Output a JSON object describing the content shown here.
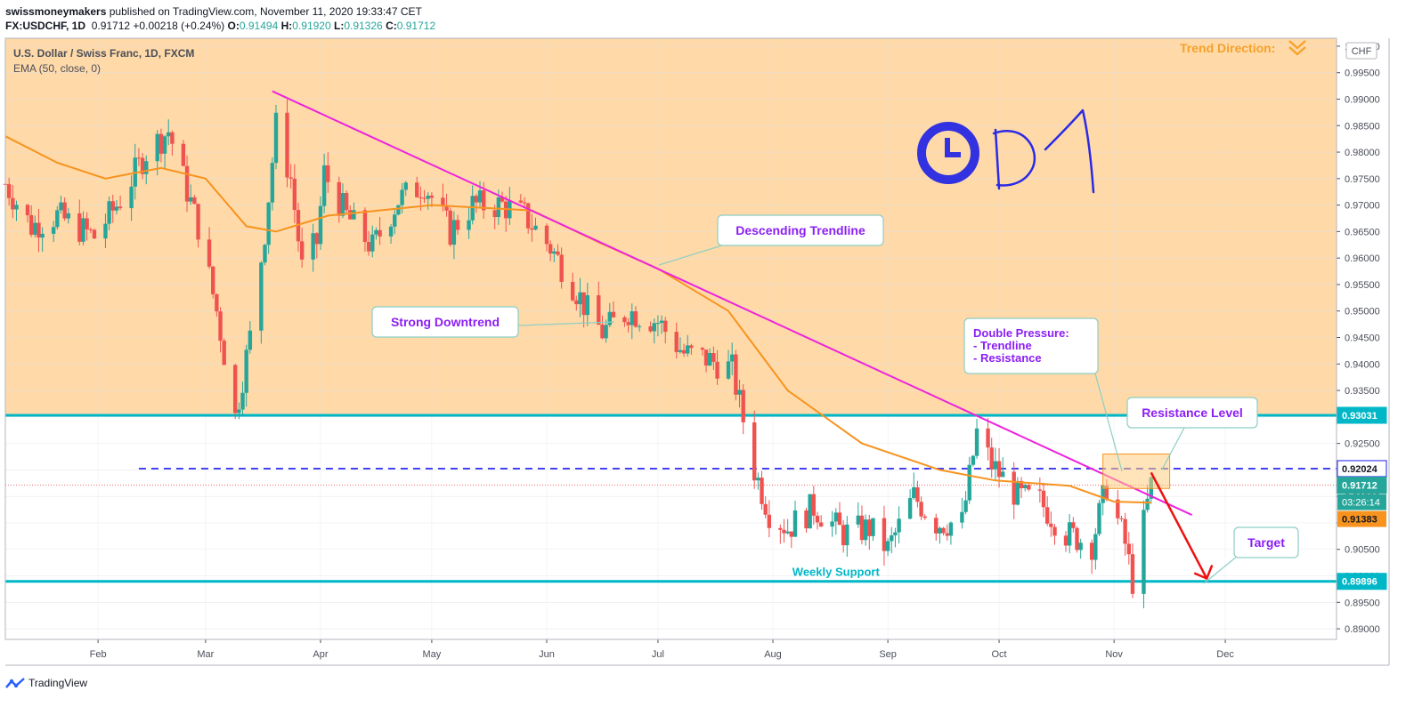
{
  "header": {
    "publisher": "swissmoneymakers",
    "published_text": "published on TradingView.com, November 11, 2020 19:33:47 CET",
    "symbol_line": "FX:USDCHF, 1D",
    "last": "0.91712",
    "change": "+0.00218 (+0.24%)",
    "open_label": "O:",
    "open": "0.91494",
    "high_label": "H:",
    "high": "0.91920",
    "low_label": "L:",
    "low": "0.91326",
    "close_label": "C:",
    "close": "0.91712"
  },
  "legend": {
    "title": "U.S. Dollar / Swiss Franc, 1D, FXCM",
    "indicator": "EMA (50, close, 0)"
  },
  "currency_badge": "CHF",
  "footer": {
    "brand": "TradingView"
  },
  "annotations": {
    "trend_direction": "Trend Direction:",
    "descending_trendline": "Descending Trendline",
    "strong_downtrend": "Strong Downtrend",
    "double_pressure": [
      "Double Pressure:",
      "- Trendline",
      "- Resistance"
    ],
    "resistance_level": "Resistance Level",
    "target": "Target",
    "weekly_support": "Weekly Support",
    "timeframe_handwritten": "D1"
  },
  "price_tags": {
    "resistance": "0.93031",
    "dashed_level": "0.92024",
    "last_price": "0.91712",
    "countdown": "03:26:14",
    "ema_value": "0.91383",
    "support": "0.89896"
  },
  "colors": {
    "up": "#26a69a",
    "down": "#ef5350",
    "ema": "#f7931e",
    "trendline": "#ee22dd",
    "zone": "#ffd9a8",
    "level_line": "#00b7c7",
    "dashed_level": "#1c1cf0",
    "arrow": "#ee1111",
    "annotation_text": "#8b1ef5",
    "trend_text": "#f7a128",
    "clock": "#3232e0"
  },
  "chart_data": {
    "type": "candlestick",
    "symbol": "FX:USDCHF",
    "interval": "1D",
    "x_tick_labels": [
      "Feb",
      "Mar",
      "Apr",
      "May",
      "Jun",
      "Jul",
      "Aug",
      "Sep",
      "Oct",
      "Nov",
      "Dec"
    ],
    "y_tick_labels": [
      "0.89000",
      "0.89500",
      "0.90000",
      "0.90500",
      "0.91000",
      "0.91500",
      "0.92000",
      "0.92500",
      "0.93000",
      "0.93500",
      "0.94000",
      "0.94500",
      "0.95000",
      "0.95500",
      "0.96000",
      "0.96500",
      "0.97000",
      "0.97500",
      "0.98000",
      "0.98500",
      "0.99000",
      "0.99500",
      "1.00000"
    ],
    "ylim": [
      0.888,
      1.0015
    ],
    "xlim": [
      "2020-01-07",
      "2020-12-31"
    ],
    "close_path": [
      [
        "2020-01-07",
        0.974
      ],
      [
        "2020-01-14",
        0.966
      ],
      [
        "2020-01-21",
        0.968
      ],
      [
        "2020-01-31",
        0.964
      ],
      [
        "2020-02-07",
        0.971
      ],
      [
        "2020-02-14",
        0.98
      ],
      [
        "2020-02-20",
        0.984
      ],
      [
        "2020-02-28",
        0.966
      ],
      [
        "2020-03-04",
        0.95
      ],
      [
        "2020-03-09",
        0.93
      ],
      [
        "2020-03-13",
        0.945
      ],
      [
        "2020-03-17",
        0.965
      ],
      [
        "2020-03-20",
        0.985
      ],
      [
        "2020-03-24",
        0.975
      ],
      [
        "2020-03-27",
        0.958
      ],
      [
        "2020-03-31",
        0.963
      ],
      [
        "2020-04-02",
        0.976
      ],
      [
        "2020-04-08",
        0.968
      ],
      [
        "2020-04-15",
        0.962
      ],
      [
        "2020-04-22",
        0.971
      ],
      [
        "2020-04-29",
        0.974
      ],
      [
        "2020-05-06",
        0.965
      ],
      [
        "2020-05-12",
        0.97
      ],
      [
        "2020-05-20",
        0.97
      ],
      [
        "2020-05-26",
        0.968
      ],
      [
        "2020-06-02",
        0.962
      ],
      [
        "2020-06-08",
        0.955
      ],
      [
        "2020-06-12",
        0.95
      ],
      [
        "2020-06-16",
        0.946
      ],
      [
        "2020-06-23",
        0.95
      ],
      [
        "2020-07-01",
        0.948
      ],
      [
        "2020-07-08",
        0.942
      ],
      [
        "2020-07-14",
        0.941
      ],
      [
        "2020-07-21",
        0.939
      ],
      [
        "2020-07-27",
        0.92
      ],
      [
        "2020-07-31",
        0.912
      ],
      [
        "2020-08-05",
        0.909
      ],
      [
        "2020-08-12",
        0.913
      ],
      [
        "2020-08-20",
        0.908
      ],
      [
        "2020-08-27",
        0.909
      ],
      [
        "2020-09-01",
        0.905
      ],
      [
        "2020-09-08",
        0.915
      ],
      [
        "2020-09-14",
        0.91
      ],
      [
        "2020-09-21",
        0.91
      ],
      [
        "2020-09-25",
        0.927
      ],
      [
        "2020-09-29",
        0.921
      ],
      [
        "2020-10-06",
        0.915
      ],
      [
        "2020-10-12",
        0.914
      ],
      [
        "2020-10-19",
        0.908
      ],
      [
        "2020-10-26",
        0.906
      ],
      [
        "2020-10-30",
        0.917
      ],
      [
        "2020-11-04",
        0.906
      ],
      [
        "2020-11-06",
        0.899
      ],
      [
        "2020-11-11",
        0.91712
      ]
    ],
    "ema_path": [
      [
        "2020-01-07",
        0.983
      ],
      [
        "2020-01-21",
        0.978
      ],
      [
        "2020-02-03",
        0.975
      ],
      [
        "2020-02-18",
        0.977
      ],
      [
        "2020-03-01",
        0.975
      ],
      [
        "2020-03-12",
        0.966
      ],
      [
        "2020-03-20",
        0.965
      ],
      [
        "2020-04-03",
        0.968
      ],
      [
        "2020-05-01",
        0.97
      ],
      [
        "2020-05-28",
        0.969
      ],
      [
        "2020-06-15",
        0.963
      ],
      [
        "2020-07-01",
        0.958
      ],
      [
        "2020-07-20",
        0.95
      ],
      [
        "2020-08-05",
        0.935
      ],
      [
        "2020-08-25",
        0.925
      ],
      [
        "2020-09-15",
        0.92
      ],
      [
        "2020-09-30",
        0.918
      ],
      [
        "2020-10-20",
        0.917
      ],
      [
        "2020-11-01",
        0.914
      ],
      [
        "2020-11-11",
        0.91383
      ]
    ],
    "horizontal_levels": [
      {
        "name": "Weekly Support",
        "value": 0.89896
      },
      {
        "name": "Resistance Level",
        "value": 0.93031
      },
      {
        "name": "dashed",
        "value": 0.92024
      }
    ],
    "trendline": [
      [
        "2020-03-19",
        0.9915
      ],
      [
        "2020-11-22",
        0.9115
      ]
    ],
    "projection_arrow": [
      [
        "2020-11-11",
        0.9195
      ],
      [
        "2020-11-26",
        0.8995
      ]
    ],
    "resistance_box": [
      [
        "2020-10-29",
        "2020-11-16"
      ],
      [
        0.9165,
        0.923
      ]
    ]
  }
}
